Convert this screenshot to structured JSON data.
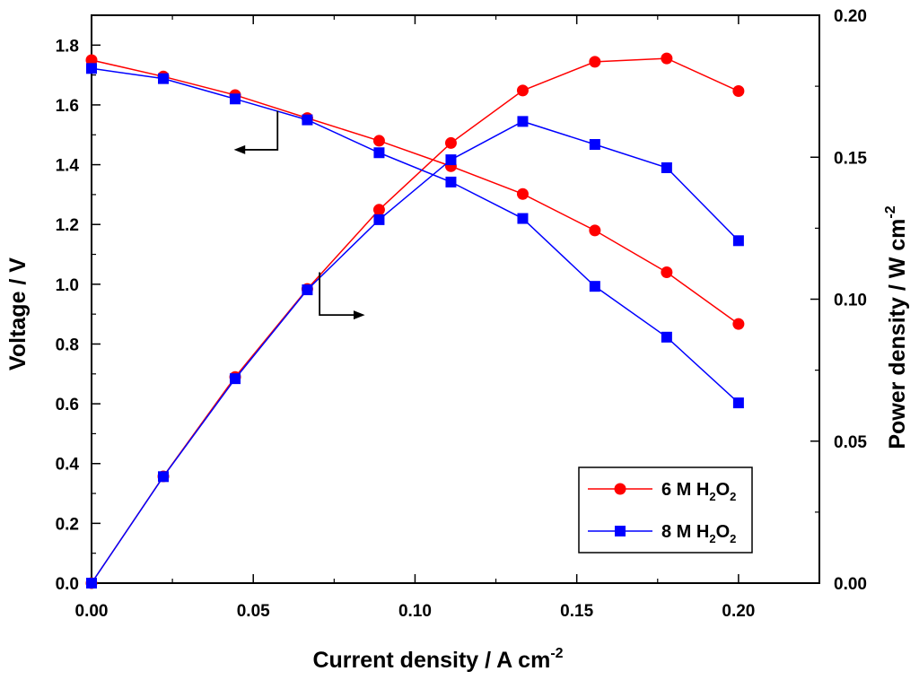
{
  "chart_data": {
    "type": "line",
    "xlabel": {
      "main": "Current density / A cm",
      "sup": "-2"
    },
    "ylabel_left": "Voltage / V",
    "ylabel_right": {
      "main": "Power density / W cm",
      "sup": "-2"
    },
    "xlim": [
      0,
      0.225
    ],
    "ylim_left": [
      0,
      1.9
    ],
    "ylim_right": [
      0,
      0.2
    ],
    "x_ticks": [
      "0.00",
      "0.05",
      "0.10",
      "0.15",
      "0.20"
    ],
    "y_left_ticks": [
      "0.0",
      "0.2",
      "0.4",
      "0.6",
      "0.8",
      "1.0",
      "1.2",
      "1.4",
      "1.6",
      "1.8"
    ],
    "y_right_ticks": [
      "0.00",
      "0.05",
      "0.10",
      "0.15",
      "0.20"
    ],
    "x": [
      0,
      0.0222,
      0.0444,
      0.0667,
      0.0889,
      0.1111,
      0.1333,
      0.1556,
      0.1778,
      0.2
    ],
    "series": [
      {
        "name": "6 M H2O2",
        "label_main": "6 M H",
        "label_sub1": "2",
        "label_mid": "O",
        "label_sub2": "2",
        "color": "#ff0000",
        "marker": "circle",
        "voltage": [
          1.75,
          1.695,
          1.633,
          1.556,
          1.48,
          1.395,
          1.302,
          1.18,
          1.04,
          0.867
        ],
        "power": [
          0.0,
          0.0376,
          0.0726,
          0.1036,
          0.1315,
          0.155,
          0.1735,
          0.1836,
          0.1848,
          0.1733
        ]
      },
      {
        "name": "8 M H2O2",
        "label_main": "8 M H",
        "label_sub1": "2",
        "label_mid": "O",
        "label_sub2": "2",
        "color": "#0000ff",
        "marker": "square",
        "voltage": [
          1.722,
          1.688,
          1.62,
          1.55,
          1.44,
          1.342,
          1.22,
          0.993,
          0.823,
          0.603
        ],
        "power": [
          0.0,
          0.0375,
          0.072,
          0.1033,
          0.128,
          0.1491,
          0.1626,
          0.1545,
          0.1463,
          0.1206
        ]
      }
    ],
    "annotations": [
      {
        "text": "left-arrow",
        "meaning": "voltage curves read on left axis"
      },
      {
        "text": "right-arrow",
        "meaning": "power curves read on right axis"
      }
    ],
    "legend_position": "bottom-right",
    "grid": false
  }
}
